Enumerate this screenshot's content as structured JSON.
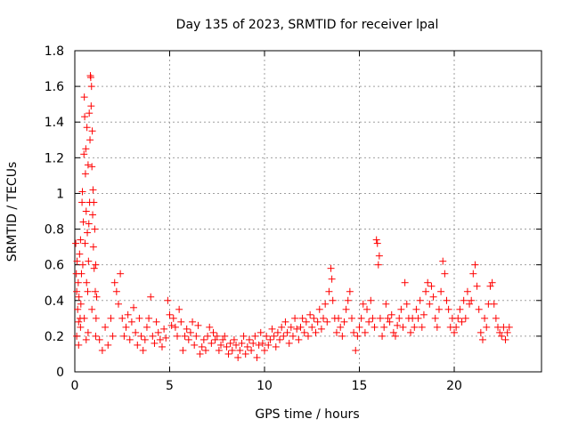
{
  "chart_data": {
    "type": "scatter",
    "title": "Day 135 of 2023, SRMTID for receiver lpal",
    "xlabel": "GPS time / hours",
    "ylabel": "SRMTID / TECUs",
    "xlim": [
      0,
      24.6
    ],
    "ylim": [
      0,
      1.8
    ],
    "x_ticks": [
      0,
      5,
      10,
      15,
      20
    ],
    "y_ticks": [
      0,
      0.2,
      0.4,
      0.6,
      0.8,
      1,
      1.2,
      1.4,
      1.6,
      1.8
    ],
    "x_tick_labels": [
      "0",
      "5",
      "10",
      "15",
      "20"
    ],
    "y_tick_labels": [
      "0",
      "0.2",
      "0.4",
      "0.6",
      "0.8",
      "1",
      "1.2",
      "1.4",
      "1.6",
      "1.8"
    ],
    "grid": true,
    "marker": "+",
    "series": [
      {
        "name": "SRMTID",
        "color": "#ff0000",
        "points": [
          [
            0.05,
            0.72
          ],
          [
            0.08,
            0.55
          ],
          [
            0.1,
            0.45
          ],
          [
            0.12,
            0.62
          ],
          [
            0.15,
            0.35
          ],
          [
            0.18,
            0.5
          ],
          [
            0.2,
            0.28
          ],
          [
            0.22,
            0.42
          ],
          [
            0.25,
            0.66
          ],
          [
            0.28,
            0.3
          ],
          [
            0.3,
            0.74
          ],
          [
            0.32,
            0.38
          ],
          [
            0.35,
            0.55
          ],
          [
            0.38,
            0.95
          ],
          [
            0.4,
            1.01
          ],
          [
            0.42,
            0.6
          ],
          [
            0.45,
            0.84
          ],
          [
            0.48,
            1.22
          ],
          [
            0.5,
            1.54
          ],
          [
            0.52,
            1.43
          ],
          [
            0.54,
            0.72
          ],
          [
            0.56,
            1.11
          ],
          [
            0.58,
            1.25
          ],
          [
            0.6,
            0.9
          ],
          [
            0.62,
            0.5
          ],
          [
            0.64,
            1.37
          ],
          [
            0.66,
            0.78
          ],
          [
            0.68,
            0.45
          ],
          [
            0.7,
            1.16
          ],
          [
            0.72,
            0.62
          ],
          [
            0.74,
            0.83
          ],
          [
            0.76,
            1.45
          ],
          [
            0.78,
            0.95
          ],
          [
            0.8,
            1.3
          ],
          [
            0.82,
            1.66
          ],
          [
            0.84,
            1.65
          ],
          [
            0.86,
            1.49
          ],
          [
            0.88,
            1.6
          ],
          [
            0.9,
            1.15
          ],
          [
            0.92,
            1.35
          ],
          [
            0.94,
            0.88
          ],
          [
            0.96,
            1.02
          ],
          [
            0.98,
            0.7
          ],
          [
            1.0,
            0.95
          ],
          [
            1.02,
            0.58
          ],
          [
            1.05,
            0.8
          ],
          [
            1.08,
            0.45
          ],
          [
            1.1,
            0.6
          ],
          [
            1.12,
            0.3
          ],
          [
            1.15,
            0.42
          ],
          [
            0.1,
            0.2
          ],
          [
            0.3,
            0.25
          ],
          [
            0.5,
            0.3
          ],
          [
            0.7,
            0.22
          ],
          [
            0.9,
            0.35
          ],
          [
            1.1,
            0.2
          ],
          [
            0.2,
            0.15
          ],
          [
            0.6,
            0.18
          ],
          [
            1.3,
            0.18
          ],
          [
            1.45,
            0.12
          ],
          [
            1.6,
            0.25
          ],
          [
            1.75,
            0.15
          ],
          [
            1.9,
            0.3
          ],
          [
            2.0,
            0.2
          ],
          [
            2.1,
            0.5
          ],
          [
            2.2,
            0.45
          ],
          [
            2.3,
            0.38
          ],
          [
            2.4,
            0.55
          ],
          [
            2.5,
            0.3
          ],
          [
            2.6,
            0.2
          ],
          [
            2.7,
            0.25
          ],
          [
            2.8,
            0.32
          ],
          [
            2.9,
            0.18
          ],
          [
            3.0,
            0.28
          ],
          [
            3.1,
            0.36
          ],
          [
            3.2,
            0.22
          ],
          [
            3.3,
            0.15
          ],
          [
            3.4,
            0.3
          ],
          [
            3.5,
            0.2
          ],
          [
            3.6,
            0.12
          ],
          [
            3.7,
            0.18
          ],
          [
            3.8,
            0.25
          ],
          [
            3.9,
            0.3
          ],
          [
            4.0,
            0.42
          ],
          [
            4.1,
            0.2
          ],
          [
            4.2,
            0.16
          ],
          [
            4.3,
            0.28
          ],
          [
            4.4,
            0.22
          ],
          [
            4.5,
            0.18
          ],
          [
            4.6,
            0.14
          ],
          [
            4.7,
            0.24
          ],
          [
            4.8,
            0.19
          ],
          [
            4.9,
            0.4
          ],
          [
            5.0,
            0.32
          ],
          [
            5.1,
            0.26
          ],
          [
            5.2,
            0.3
          ],
          [
            5.3,
            0.25
          ],
          [
            5.4,
            0.2
          ],
          [
            5.5,
            0.35
          ],
          [
            5.6,
            0.28
          ],
          [
            5.7,
            0.12
          ],
          [
            5.8,
            0.2
          ],
          [
            5.9,
            0.24
          ],
          [
            6.0,
            0.18
          ],
          [
            6.1,
            0.22
          ],
          [
            6.2,
            0.28
          ],
          [
            6.3,
            0.15
          ],
          [
            6.4,
            0.2
          ],
          [
            6.5,
            0.26
          ],
          [
            6.6,
            0.1
          ],
          [
            6.7,
            0.14
          ],
          [
            6.8,
            0.18
          ],
          [
            6.9,
            0.12
          ],
          [
            7.0,
            0.2
          ],
          [
            7.1,
            0.25
          ],
          [
            7.2,
            0.16
          ],
          [
            7.3,
            0.22
          ],
          [
            7.4,
            0.18
          ],
          [
            7.5,
            0.2
          ],
          [
            7.6,
            0.12
          ],
          [
            7.7,
            0.15
          ],
          [
            7.8,
            0.18
          ],
          [
            7.9,
            0.2
          ],
          [
            8.0,
            0.14
          ],
          [
            8.1,
            0.1
          ],
          [
            8.2,
            0.16
          ],
          [
            8.3,
            0.12
          ],
          [
            8.4,
            0.18
          ],
          [
            8.5,
            0.15
          ],
          [
            8.6,
            0.08
          ],
          [
            8.7,
            0.12
          ],
          [
            8.8,
            0.16
          ],
          [
            8.9,
            0.2
          ],
          [
            9.0,
            0.1
          ],
          [
            9.1,
            0.14
          ],
          [
            9.2,
            0.18
          ],
          [
            9.3,
            0.12
          ],
          [
            9.4,
            0.16
          ],
          [
            9.5,
            0.2
          ],
          [
            9.6,
            0.08
          ],
          [
            9.7,
            0.15
          ],
          [
            9.8,
            0.22
          ],
          [
            9.9,
            0.16
          ],
          [
            10.0,
            0.12
          ],
          [
            10.1,
            0.2
          ],
          [
            10.2,
            0.15
          ],
          [
            10.3,
            0.18
          ],
          [
            10.4,
            0.24
          ],
          [
            10.5,
            0.2
          ],
          [
            10.6,
            0.14
          ],
          [
            10.7,
            0.22
          ],
          [
            10.8,
            0.18
          ],
          [
            10.9,
            0.25
          ],
          [
            11.0,
            0.2
          ],
          [
            11.1,
            0.28
          ],
          [
            11.2,
            0.22
          ],
          [
            11.3,
            0.16
          ],
          [
            11.4,
            0.25
          ],
          [
            11.5,
            0.2
          ],
          [
            11.6,
            0.3
          ],
          [
            11.7,
            0.24
          ],
          [
            11.8,
            0.18
          ],
          [
            11.9,
            0.25
          ],
          [
            12.0,
            0.3
          ],
          [
            12.1,
            0.22
          ],
          [
            12.2,
            0.28
          ],
          [
            12.3,
            0.2
          ],
          [
            12.4,
            0.32
          ],
          [
            12.5,
            0.25
          ],
          [
            12.6,
            0.3
          ],
          [
            12.7,
            0.22
          ],
          [
            12.8,
            0.28
          ],
          [
            12.9,
            0.35
          ],
          [
            13.0,
            0.24
          ],
          [
            13.1,
            0.3
          ],
          [
            13.2,
            0.38
          ],
          [
            13.3,
            0.28
          ],
          [
            13.4,
            0.45
          ],
          [
            13.5,
            0.58
          ],
          [
            13.55,
            0.52
          ],
          [
            13.6,
            0.4
          ],
          [
            13.7,
            0.3
          ],
          [
            13.8,
            0.22
          ],
          [
            13.9,
            0.3
          ],
          [
            14.0,
            0.25
          ],
          [
            14.1,
            0.2
          ],
          [
            14.2,
            0.28
          ],
          [
            14.3,
            0.35
          ],
          [
            14.4,
            0.4
          ],
          [
            14.5,
            0.45
          ],
          [
            14.6,
            0.3
          ],
          [
            14.7,
            0.22
          ],
          [
            14.8,
            0.12
          ],
          [
            14.9,
            0.2
          ],
          [
            15.0,
            0.25
          ],
          [
            15.1,
            0.3
          ],
          [
            15.2,
            0.38
          ],
          [
            15.3,
            0.22
          ],
          [
            15.4,
            0.35
          ],
          [
            15.5,
            0.28
          ],
          [
            15.6,
            0.4
          ],
          [
            15.7,
            0.3
          ],
          [
            15.8,
            0.25
          ],
          [
            15.9,
            0.74
          ],
          [
            15.95,
            0.72
          ],
          [
            16.0,
            0.6
          ],
          [
            16.05,
            0.65
          ],
          [
            16.1,
            0.3
          ],
          [
            16.2,
            0.2
          ],
          [
            16.3,
            0.25
          ],
          [
            16.4,
            0.38
          ],
          [
            16.5,
            0.3
          ],
          [
            16.6,
            0.28
          ],
          [
            16.7,
            0.32
          ],
          [
            16.8,
            0.22
          ],
          [
            16.9,
            0.2
          ],
          [
            17.0,
            0.26
          ],
          [
            17.1,
            0.3
          ],
          [
            17.2,
            0.35
          ],
          [
            17.3,
            0.25
          ],
          [
            17.4,
            0.5
          ],
          [
            17.5,
            0.38
          ],
          [
            17.6,
            0.3
          ],
          [
            17.7,
            0.22
          ],
          [
            17.8,
            0.3
          ],
          [
            17.9,
            0.25
          ],
          [
            18.0,
            0.35
          ],
          [
            18.1,
            0.3
          ],
          [
            18.2,
            0.4
          ],
          [
            18.3,
            0.25
          ],
          [
            18.4,
            0.32
          ],
          [
            18.5,
            0.45
          ],
          [
            18.6,
            0.5
          ],
          [
            18.7,
            0.38
          ],
          [
            18.8,
            0.48
          ],
          [
            18.9,
            0.42
          ],
          [
            19.0,
            0.3
          ],
          [
            19.1,
            0.25
          ],
          [
            19.2,
            0.35
          ],
          [
            19.3,
            0.45
          ],
          [
            19.4,
            0.62
          ],
          [
            19.5,
            0.55
          ],
          [
            19.6,
            0.4
          ],
          [
            19.7,
            0.35
          ],
          [
            19.8,
            0.25
          ],
          [
            19.9,
            0.3
          ],
          [
            20.0,
            0.22
          ],
          [
            20.1,
            0.25
          ],
          [
            20.2,
            0.3
          ],
          [
            20.3,
            0.35
          ],
          [
            20.4,
            0.28
          ],
          [
            20.5,
            0.4
          ],
          [
            20.6,
            0.3
          ],
          [
            20.7,
            0.45
          ],
          [
            20.8,
            0.38
          ],
          [
            20.9,
            0.4
          ],
          [
            21.0,
            0.55
          ],
          [
            21.1,
            0.6
          ],
          [
            21.2,
            0.48
          ],
          [
            21.3,
            0.35
          ],
          [
            21.4,
            0.22
          ],
          [
            21.5,
            0.18
          ],
          [
            21.6,
            0.3
          ],
          [
            21.7,
            0.25
          ],
          [
            21.8,
            0.38
          ],
          [
            21.9,
            0.48
          ],
          [
            22.0,
            0.5
          ],
          [
            22.1,
            0.38
          ],
          [
            22.2,
            0.3
          ],
          [
            22.3,
            0.25
          ],
          [
            22.4,
            0.22
          ],
          [
            22.5,
            0.2
          ],
          [
            22.6,
            0.25
          ],
          [
            22.7,
            0.18
          ],
          [
            22.8,
            0.22
          ],
          [
            22.9,
            0.25
          ]
        ]
      }
    ]
  }
}
